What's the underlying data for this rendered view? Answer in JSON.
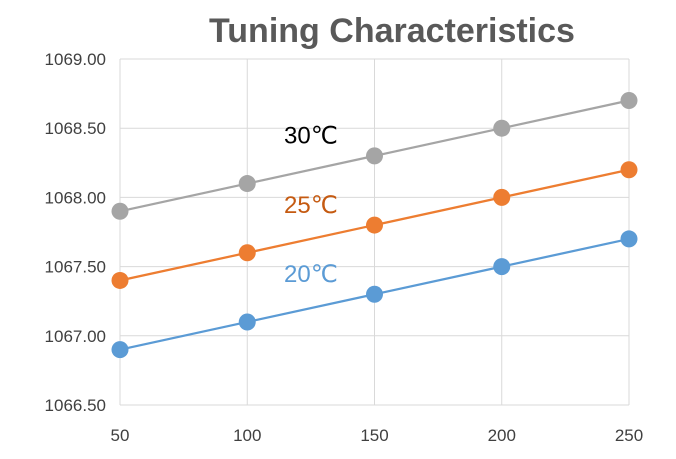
{
  "chart_data": {
    "type": "line",
    "title": "Tuning Characteristics",
    "xlabel": "",
    "ylabel": "",
    "x": [
      50,
      100,
      150,
      200,
      250
    ],
    "x_tick_labels": [
      "50",
      "100",
      "150",
      "200",
      "250"
    ],
    "xlim": [
      50,
      250
    ],
    "y_tick_labels": [
      "1066.50",
      "1067.00",
      "1067.50",
      "1068.00",
      "1068.50",
      "1069.00"
    ],
    "y_ticks": [
      1066.5,
      1067.0,
      1067.5,
      1068.0,
      1068.5,
      1069.0
    ],
    "ylim": [
      1066.5,
      1069.0
    ],
    "grid": true,
    "legend": "none",
    "series": [
      {
        "name": "30℃",
        "values": [
          1067.9,
          1068.1,
          1068.3,
          1068.5,
          1068.7
        ],
        "color": "#a5a5a5"
      },
      {
        "name": "25℃",
        "values": [
          1067.4,
          1067.6,
          1067.8,
          1068.0,
          1068.2
        ],
        "color": "#ed7d31"
      },
      {
        "name": "20℃",
        "values": [
          1066.9,
          1067.1,
          1067.3,
          1067.5,
          1067.7
        ],
        "color": "#5b9bd5"
      }
    ],
    "label_colors": {
      "30℃": "#000000",
      "25℃": "#c55a11",
      "20℃": "#5b9bd5"
    }
  }
}
